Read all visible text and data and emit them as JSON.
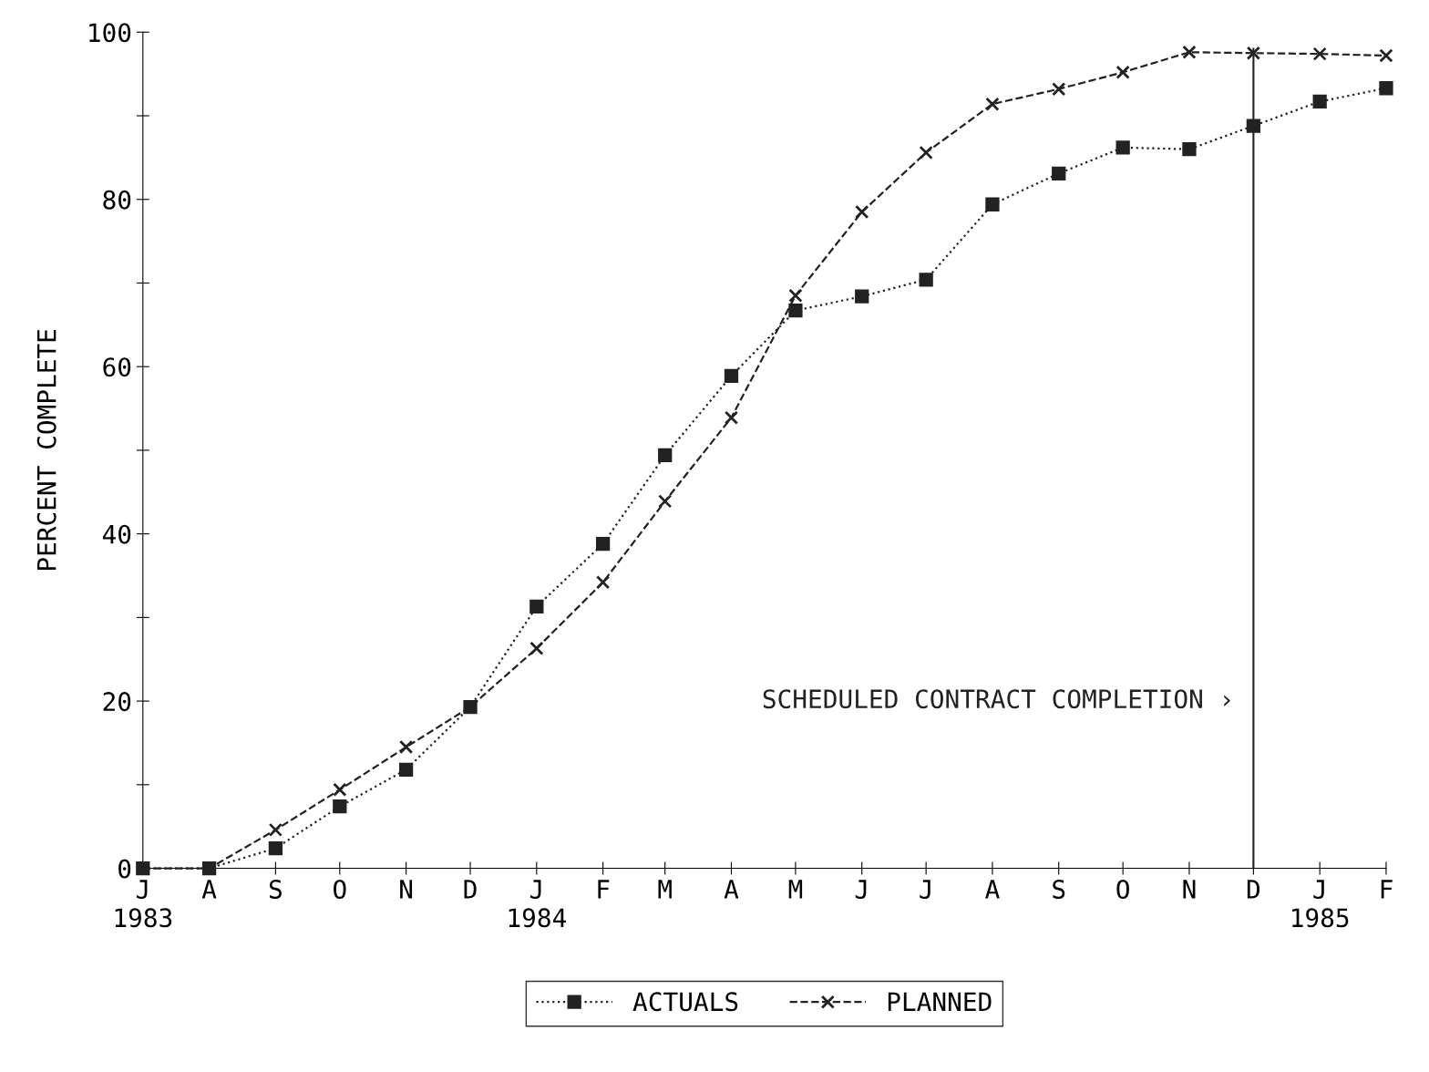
{
  "chart_data": {
    "type": "line",
    "ylabel": "PERCENT COMPLETE",
    "x": [
      "1983-07",
      "1983-08",
      "1983-09",
      "1983-10",
      "1983-11",
      "1983-12",
      "1984-01",
      "1984-02",
      "1984-03",
      "1984-04",
      "1984-05",
      "1984-06",
      "1984-07",
      "1984-08",
      "1984-09",
      "1984-10",
      "1984-11",
      "1984-12",
      "1985-01",
      "1985-02"
    ],
    "xlim": [
      "1983-07",
      "1985-02"
    ],
    "xticks": [
      {
        "value": "1983-07",
        "label": "J\n1983"
      },
      {
        "value": "1983-08",
        "label": "A"
      },
      {
        "value": "1983-09",
        "label": "S"
      },
      {
        "value": "1983-10",
        "label": "O"
      },
      {
        "value": "1983-11",
        "label": "N"
      },
      {
        "value": "1983-12",
        "label": "D"
      },
      {
        "value": "1984-01",
        "label": "J\n1984"
      },
      {
        "value": "1984-02",
        "label": "F"
      },
      {
        "value": "1984-03",
        "label": "M"
      },
      {
        "value": "1984-04",
        "label": "A"
      },
      {
        "value": "1984-05",
        "label": "M"
      },
      {
        "value": "1984-06",
        "label": "J"
      },
      {
        "value": "1984-07",
        "label": "J"
      },
      {
        "value": "1984-08",
        "label": "A"
      },
      {
        "value": "1984-09",
        "label": "S"
      },
      {
        "value": "1984-10",
        "label": "O"
      },
      {
        "value": "1984-11",
        "label": "N"
      },
      {
        "value": "1984-12",
        "label": "D"
      },
      {
        "value": "1985-01",
        "label": "J\n1985"
      },
      {
        "value": "1985-02",
        "label": "F"
      }
    ],
    "series": [
      {
        "name": "ACTUALS",
        "color": "#222222",
        "marker": "square",
        "line_style": "dotted",
        "values": [
          0,
          0,
          2.4,
          7.4,
          11.8,
          19.3,
          31.3,
          38.8,
          49.4,
          58.9,
          66.7,
          68.4,
          70.4,
          79.4,
          83.1,
          86.2,
          86.0,
          88.8,
          91.7,
          93.3
        ]
      },
      {
        "name": "PLANNED",
        "color": "#222222",
        "marker": "cross",
        "line_style": "dashed",
        "values": [
          0,
          0,
          4.6,
          9.4,
          14.5,
          19.3,
          26.3,
          34.2,
          43.9,
          53.9,
          68.5,
          78.5,
          85.6,
          91.4,
          93.2,
          95.2,
          97.6,
          97.5,
          97.4,
          97.2
        ]
      }
    ],
    "ylim": [
      0,
      100
    ],
    "yticks": [
      0,
      {
        "value": 10,
        "label": null
      },
      20,
      {
        "value": 30,
        "label": null
      },
      40,
      {
        "value": 50,
        "label": null
      },
      60,
      {
        "value": 70,
        "label": null
      },
      80,
      {
        "value": 90,
        "label": null
      },
      100
    ],
    "ref_lines": [
      {
        "axis": "x",
        "value": "1984-12",
        "label": "SCHEDULED CONTRACT COMPLETION ›",
        "color": "#222222",
        "line_style": "solid"
      }
    ],
    "legend": "bottom"
  }
}
